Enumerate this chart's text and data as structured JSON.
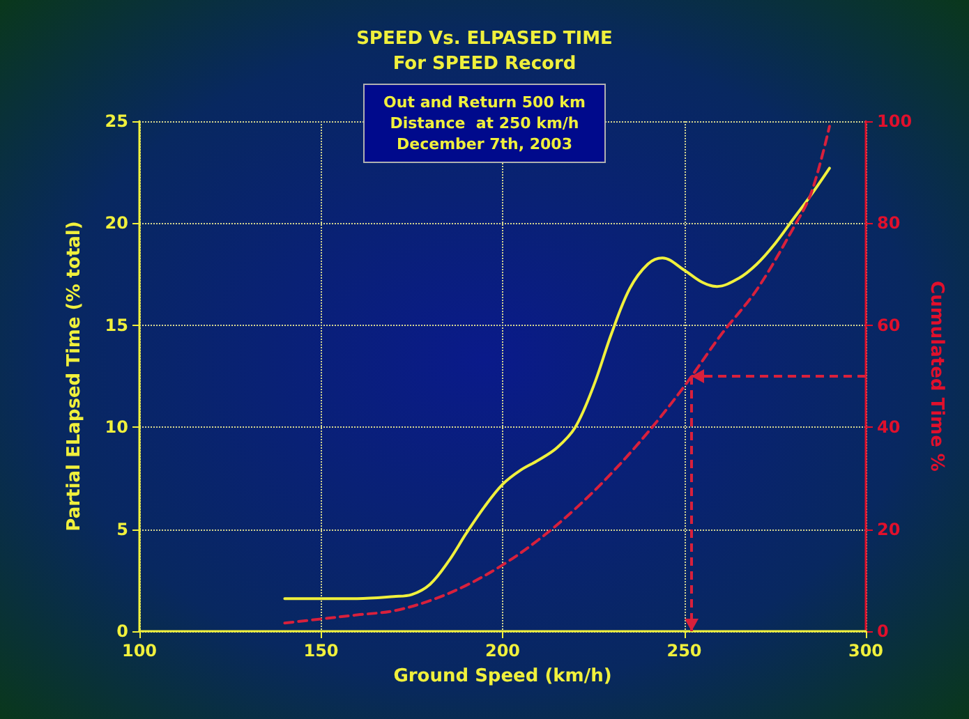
{
  "chart_data": {
    "type": "line",
    "title": "SPEED Vs. ELPASED TIME\nFor SPEED Record",
    "subtitle": "Out and Return 500 km\nDistance  at 250 km/h\nDecember 7th, 2003",
    "xlabel": "Ground Speed (km/h)",
    "ylabel": "Partial ELapsed Time (% total)",
    "y2label": "Cumulated Time %",
    "xlim": [
      100,
      300
    ],
    "xticks": [
      100,
      150,
      200,
      250,
      300
    ],
    "ylim": [
      0,
      25
    ],
    "yticks": [
      0,
      5,
      10,
      15,
      20,
      25
    ],
    "y2lim": [
      0,
      100
    ],
    "y2ticks": [
      0,
      20,
      40,
      60,
      80,
      100
    ],
    "grid": true,
    "marker": "none",
    "series": [
      {
        "color": "#f0f03c",
        "line_style": "solid",
        "x": [
          140,
          150,
          160,
          170,
          175,
          180,
          185,
          190,
          195,
          200,
          205,
          210,
          215,
          220,
          225,
          230,
          235,
          240,
          244,
          250,
          255,
          259,
          265,
          270,
          275,
          280,
          285,
          290
        ],
        "values": [
          1.6,
          1.6,
          1.6,
          1.7,
          1.8,
          2.3,
          3.4,
          4.8,
          6.1,
          7.2,
          7.9,
          8.4,
          9.0,
          10.0,
          12.0,
          14.6,
          16.8,
          18.0,
          18.3,
          17.7,
          17.1,
          16.9,
          17.3,
          18.0,
          19.0,
          20.2,
          21.4,
          22.7
        ]
      },
      {
        "color": "#d8203c",
        "line_style": "dashed",
        "axis": "y2",
        "x": [
          140,
          150,
          160,
          170,
          180,
          190,
          200,
          210,
          220,
          230,
          240,
          250,
          260,
          270,
          280,
          285,
          290
        ],
        "values": [
          1.6,
          2.4,
          3.2,
          4.0,
          6.0,
          9,
          13,
          18,
          24,
          31,
          39,
          48,
          58,
          67,
          79,
          86,
          99
        ]
      }
    ],
    "ref_lines": [
      {
        "axis": "x",
        "value": 252,
        "color": "#d8203c",
        "line_style": "dashed"
      },
      {
        "axis": "y2",
        "value": 50,
        "color": "#d8203c",
        "line_style": "dashed"
      }
    ]
  }
}
